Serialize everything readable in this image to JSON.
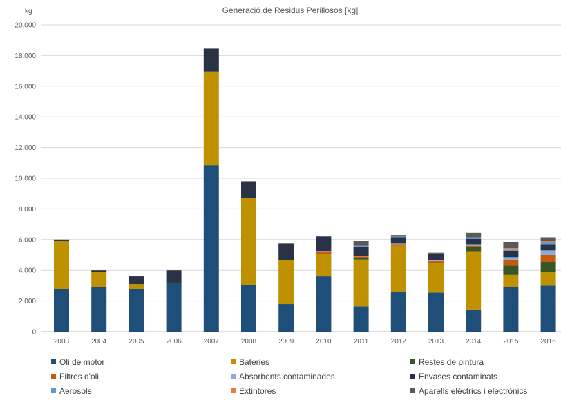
{
  "chart_data": {
    "type": "bar",
    "stacked": true,
    "title": "Generació de Residus Perillosos [kg]",
    "ylabel": "kg",
    "xlabel": "",
    "ylim": [
      0,
      20000
    ],
    "yticks": [
      "0",
      "2.000",
      "4.000",
      "6.000",
      "8.000",
      "10.000",
      "12.000",
      "14.000",
      "16.000",
      "18.000",
      "20.000"
    ],
    "grid": true,
    "legend_position": "bottom",
    "categories": [
      "2003",
      "2004",
      "2005",
      "2006",
      "2007",
      "2008",
      "2009",
      "2010",
      "2011",
      "2012",
      "2013",
      "2014",
      "2015",
      "2016"
    ],
    "series": [
      {
        "name": "Oli de motor",
        "color": "#1f4e79",
        "values": [
          2750,
          2900,
          2750,
          3200,
          10850,
          3050,
          1800,
          3600,
          1650,
          2600,
          2550,
          1400,
          2900,
          3000
        ]
      },
      {
        "name": "Bateries",
        "color": "#bf9000",
        "values": [
          3150,
          1000,
          350,
          0,
          6100,
          5650,
          2850,
          1450,
          3050,
          3000,
          1950,
          3800,
          800,
          900
        ]
      },
      {
        "name": "Restes de pintura",
        "color": "#375623",
        "values": [
          0,
          0,
          0,
          0,
          0,
          0,
          0,
          0,
          100,
          0,
          0,
          300,
          600,
          650
        ]
      },
      {
        "name": "Filtres d'oli",
        "color": "#c55a11",
        "values": [
          0,
          0,
          0,
          0,
          0,
          0,
          0,
          150,
          100,
          100,
          100,
          100,
          350,
          450
        ]
      },
      {
        "name": "Absorbents contaminades",
        "color": "#8eaadb",
        "values": [
          0,
          0,
          0,
          0,
          0,
          0,
          0,
          50,
          50,
          50,
          50,
          100,
          200,
          300
        ]
      },
      {
        "name": "Envases contaminats",
        "color": "#2a3245",
        "values": [
          100,
          100,
          500,
          800,
          1500,
          1100,
          1100,
          950,
          600,
          400,
          450,
          350,
          400,
          400
        ]
      },
      {
        "name": "Aerosols",
        "color": "#5b9bd5",
        "values": [
          0,
          0,
          0,
          0,
          0,
          0,
          0,
          50,
          50,
          50,
          0,
          100,
          100,
          150
        ]
      },
      {
        "name": "Extintores",
        "color": "#ed7d31",
        "values": [
          0,
          0,
          0,
          0,
          0,
          0,
          0,
          0,
          0,
          0,
          0,
          0,
          100,
          50
        ]
      },
      {
        "name": "Aparells elèctrics i electrònics",
        "color": "#595959",
        "values": [
          0,
          0,
          0,
          0,
          0,
          0,
          0,
          0,
          300,
          100,
          50,
          300,
          400,
          250
        ]
      }
    ]
  }
}
